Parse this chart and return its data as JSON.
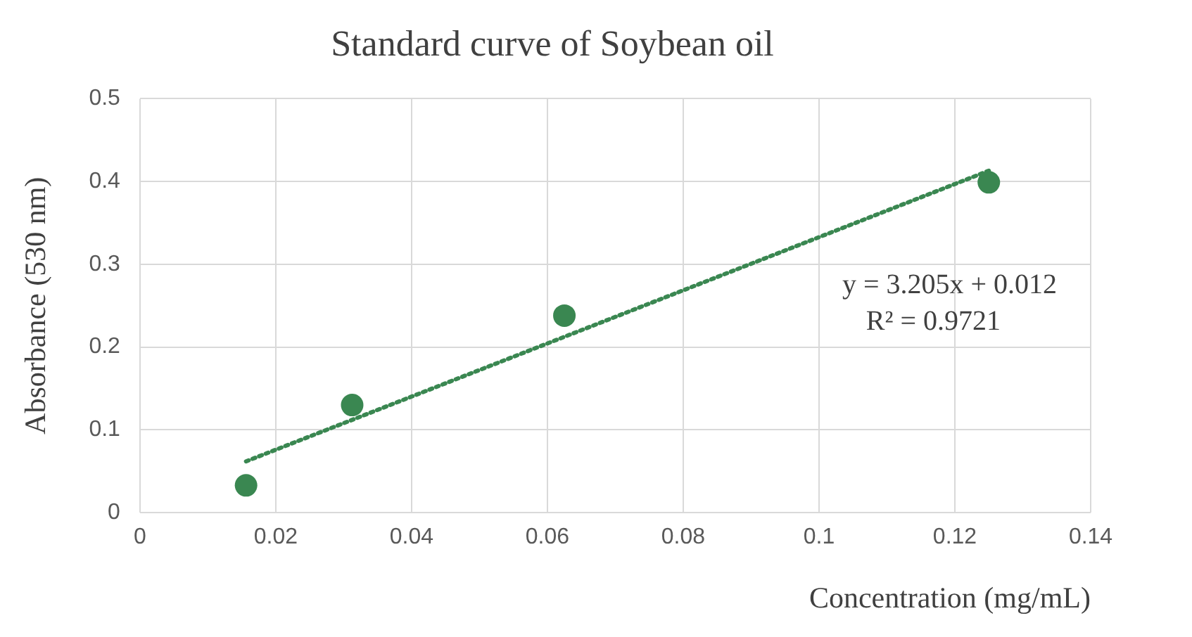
{
  "chart_data": {
    "type": "scatter",
    "title": "Standard curve of Soybean oil",
    "xlabel": "Concentration (mg/mL)",
    "ylabel": "Absorbance (530 nm)",
    "series": [
      {
        "type": "scatter",
        "color": "#3a8751",
        "x": [
          0.015625,
          0.03125,
          0.0625,
          0.125
        ],
        "values": [
          0.033,
          0.13,
          0.238,
          0.399
        ],
        "marker": "circle"
      },
      {
        "type": "line",
        "color": "#3a8751",
        "x": [
          0.015625,
          0.125
        ],
        "values": [
          0.062,
          0.413
        ],
        "line_style": "dotted",
        "marker": "none"
      }
    ],
    "annotations": [
      "y = 3.205x + 0.012",
      "R² = 0.9721"
    ],
    "xlim": [
      0,
      0.14
    ],
    "xticks": [
      0,
      0.02,
      0.04,
      0.06,
      0.08,
      0.1,
      0.12,
      0.14
    ],
    "ylim": [
      0,
      0.5
    ],
    "yticks": [
      0,
      0.1,
      0.2,
      0.3,
      0.4,
      0.5
    ],
    "grid": true,
    "legend": false
  }
}
